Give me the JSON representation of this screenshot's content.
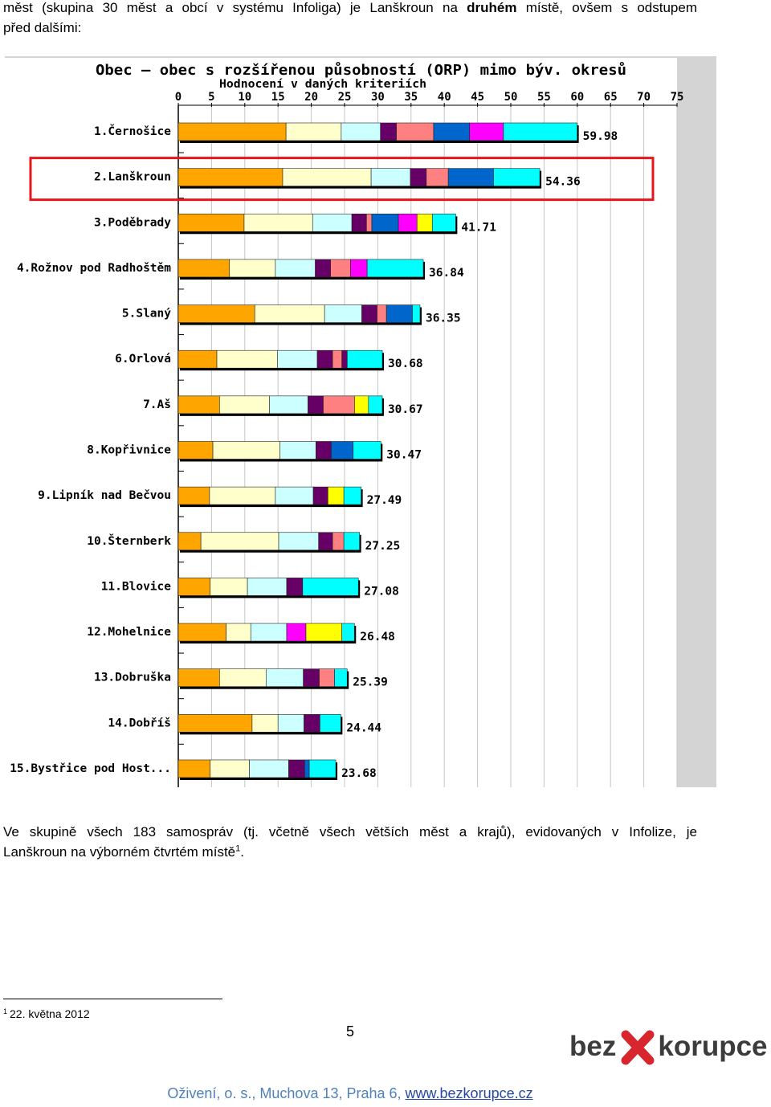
{
  "intro": {
    "line1_a": "měst (skupina 30 měst a obcí v systému Infoliga) je Lanškroun na ",
    "line1_bold": "druhém",
    "line1_b": " místě, ovšem s odstupem",
    "line2": "před dalšími:"
  },
  "chart_data": {
    "type": "bar",
    "orientation": "horizontal",
    "stacked": true,
    "title": "Obec – obec s rozšířenou působností (ORP) mimo býv. okresů",
    "subtitle": "Hodnocení v daných kriteriích",
    "xlim": [
      0,
      75
    ],
    "xticks": [
      0,
      5,
      10,
      15,
      20,
      25,
      30,
      35,
      40,
      45,
      50,
      55,
      60,
      65,
      70,
      75
    ],
    "grid": "vertical",
    "legend": "none",
    "highlight_row": 1,
    "highlight_color": "#e8141b",
    "palette": {
      "orange": "#ffa500",
      "lightyellow": "#ffffcc",
      "lightcyan": "#ccffff",
      "purple": "#660066",
      "salmon": "#ff8080",
      "blue": "#0066cc",
      "magenta": "#ff00ff",
      "yellow": "#ffff00",
      "cyan": "#00ffff"
    },
    "rows": [
      {
        "label": "1.Černošice",
        "total": 59.98,
        "segments": [
          [
            "orange",
            16.2
          ],
          [
            "lightyellow",
            8.3
          ],
          [
            "lightcyan",
            5.9
          ],
          [
            "purple",
            2.4
          ],
          [
            "salmon",
            5.6
          ],
          [
            "blue",
            5.4
          ],
          [
            "magenta",
            5.1
          ],
          [
            "cyan",
            11.08
          ]
        ]
      },
      {
        "label": "2.Lanškroun",
        "total": 54.36,
        "segments": [
          [
            "orange",
            15.7
          ],
          [
            "lightyellow",
            13.3
          ],
          [
            "lightcyan",
            5.9
          ],
          [
            "purple",
            2.4
          ],
          [
            "salmon",
            3.3
          ],
          [
            "blue",
            6.8
          ],
          [
            "cyan",
            6.96
          ]
        ]
      },
      {
        "label": "3.Poděbrady",
        "total": 41.71,
        "segments": [
          [
            "orange",
            9.9
          ],
          [
            "lightyellow",
            10.3
          ],
          [
            "lightcyan",
            5.9
          ],
          [
            "purple",
            2.2
          ],
          [
            "salmon",
            0.8
          ],
          [
            "blue",
            4.0
          ],
          [
            "magenta",
            2.8
          ],
          [
            "yellow",
            2.3
          ],
          [
            "cyan",
            3.51
          ]
        ]
      },
      {
        "label": "4.Rožnov pod Radhoštěm",
        "total": 36.84,
        "segments": [
          [
            "orange",
            7.7
          ],
          [
            "lightyellow",
            6.9
          ],
          [
            "lightcyan",
            6.0
          ],
          [
            "purple",
            2.3
          ],
          [
            "salmon",
            3.0
          ],
          [
            "magenta",
            2.5
          ],
          [
            "cyan",
            8.44
          ]
        ]
      },
      {
        "label": "5.Slaný",
        "total": 36.35,
        "segments": [
          [
            "orange",
            11.5
          ],
          [
            "lightyellow",
            10.5
          ],
          [
            "lightcyan",
            5.6
          ],
          [
            "purple",
            2.3
          ],
          [
            "salmon",
            1.4
          ],
          [
            "blue",
            3.9
          ],
          [
            "cyan",
            1.15
          ]
        ]
      },
      {
        "label": "6.Orlová",
        "total": 30.68,
        "segments": [
          [
            "orange",
            5.8
          ],
          [
            "lightyellow",
            9.1
          ],
          [
            "lightcyan",
            6.0
          ],
          [
            "purple",
            2.3
          ],
          [
            "salmon",
            1.4
          ],
          [
            "purple",
            0.8
          ],
          [
            "cyan",
            5.28
          ]
        ]
      },
      {
        "label": "7.Aš",
        "total": 30.67,
        "segments": [
          [
            "orange",
            6.2
          ],
          [
            "lightyellow",
            7.5
          ],
          [
            "lightcyan",
            5.8
          ],
          [
            "purple",
            2.3
          ],
          [
            "salmon",
            4.7
          ],
          [
            "yellow",
            2.1
          ],
          [
            "cyan",
            2.07
          ]
        ]
      },
      {
        "label": "8.Kopřivnice",
        "total": 30.47,
        "segments": [
          [
            "orange",
            5.2
          ],
          [
            "lightyellow",
            10.1
          ],
          [
            "lightcyan",
            5.4
          ],
          [
            "purple",
            2.3
          ],
          [
            "blue",
            3.3
          ],
          [
            "cyan",
            4.17
          ]
        ]
      },
      {
        "label": "9.Lipník nad Bečvou",
        "total": 27.49,
        "segments": [
          [
            "orange",
            4.7
          ],
          [
            "lightyellow",
            9.9
          ],
          [
            "lightcyan",
            5.7
          ],
          [
            "purple",
            2.2
          ],
          [
            "yellow",
            2.4
          ],
          [
            "cyan",
            2.59
          ]
        ]
      },
      {
        "label": "10.Šternberk",
        "total": 27.25,
        "segments": [
          [
            "orange",
            3.4
          ],
          [
            "lightyellow",
            11.7
          ],
          [
            "lightcyan",
            6.0
          ],
          [
            "purple",
            2.1
          ],
          [
            "salmon",
            1.7
          ],
          [
            "cyan",
            2.35
          ]
        ]
      },
      {
        "label": "11.Blovice",
        "total": 27.08,
        "segments": [
          [
            "orange",
            4.8
          ],
          [
            "lightyellow",
            5.6
          ],
          [
            "lightcyan",
            5.9
          ],
          [
            "purple",
            2.4
          ],
          [
            "cyan",
            8.38
          ]
        ]
      },
      {
        "label": "12.Mohelnice",
        "total": 26.48,
        "segments": [
          [
            "orange",
            7.2
          ],
          [
            "lightyellow",
            3.7
          ],
          [
            "lightcyan",
            5.4
          ],
          [
            "magenta",
            2.9
          ],
          [
            "yellow",
            5.4
          ],
          [
            "cyan",
            1.88
          ]
        ]
      },
      {
        "label": "13.Dobruška",
        "total": 25.39,
        "segments": [
          [
            "orange",
            6.2
          ],
          [
            "lightyellow",
            7.0
          ],
          [
            "lightcyan",
            5.6
          ],
          [
            "purple",
            2.4
          ],
          [
            "salmon",
            2.3
          ],
          [
            "cyan",
            1.89
          ]
        ]
      },
      {
        "label": "14.Dobříš",
        "total": 24.44,
        "segments": [
          [
            "orange",
            11.1
          ],
          [
            "lightyellow",
            3.9
          ],
          [
            "lightcyan",
            3.9
          ],
          [
            "purple",
            2.4
          ],
          [
            "cyan",
            3.14
          ]
        ]
      },
      {
        "label": "15.Bystřice pod Host...",
        "total": 23.68,
        "segments": [
          [
            "orange",
            4.8
          ],
          [
            "lightyellow",
            5.9
          ],
          [
            "lightcyan",
            5.9
          ],
          [
            "purple",
            2.4
          ],
          [
            "blue",
            0.7
          ],
          [
            "cyan",
            3.98
          ]
        ]
      }
    ]
  },
  "paragraph": {
    "line1": "Ve skupině všech 183 samospráv (tj. včetně všech větších měst a krajů), evidovaných v Infolize, je",
    "line2": "Lanškroun na výborném čtvrtém místě",
    "footnote_ref": "1",
    "line2_end": "."
  },
  "footnote": {
    "mark": "1",
    "text": "22. května 2012"
  },
  "page_number": "5",
  "logo": {
    "left": "bez",
    "right": "korupce",
    "x_color": "#d7262e",
    "text_color": "#3c3c3c"
  },
  "footer": {
    "address": "Oživení, o. s., Muchova 13, Praha 6, ",
    "link": "www.bezkorupce.cz"
  }
}
